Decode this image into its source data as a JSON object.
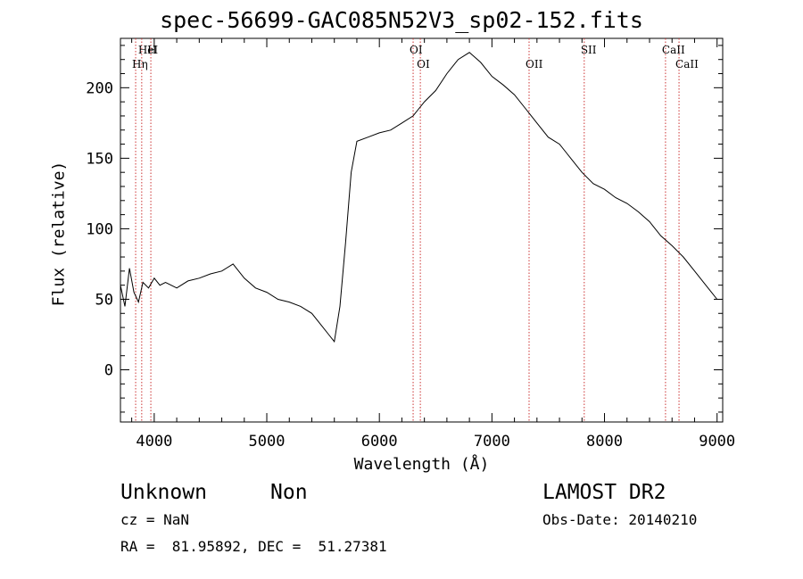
{
  "header": {
    "title": "spec-56699-GAC085N52V3_sp02-152.fits"
  },
  "footer": {
    "object_class": "Unknown",
    "object_subclass": "Non",
    "survey": "LAMOST DR2",
    "cz": "cz = NaN",
    "obs_date": "Obs-Date: 20140210",
    "radec": "RA =  81.95892, DEC =  51.27381"
  },
  "colors": {
    "line_marker": "#cc3333",
    "spectrum": "#000000"
  },
  "chart_data": {
    "type": "line",
    "title": "spec-56699-GAC085N52V3_sp02-152.fits",
    "xlabel": "Wavelength (Å)",
    "ylabel": "Flux (relative)",
    "xlim": [
      3700,
      9050
    ],
    "ylim": [
      -37,
      235
    ],
    "xticks": [
      4000,
      5000,
      6000,
      7000,
      8000,
      9000
    ],
    "yticks": [
      0,
      50,
      100,
      150,
      200
    ],
    "grid": false,
    "series": [
      {
        "x": [
          3700,
          3740,
          3780,
          3820,
          3860,
          3900,
          3950,
          4000,
          4050,
          4100,
          4200,
          4300,
          4400,
          4500,
          4600,
          4700,
          4800,
          4900,
          5000,
          5100,
          5200,
          5300,
          5400,
          5500,
          5550,
          5600,
          5650,
          5700,
          5750,
          5800,
          5900,
          6000,
          6100,
          6200,
          6300,
          6350,
          6400,
          6500,
          6600,
          6700,
          6800,
          6900,
          7000,
          7100,
          7200,
          7300,
          7400,
          7500,
          7600,
          7700,
          7800,
          7900,
          8000,
          8100,
          8200,
          8300,
          8400,
          8500,
          8600,
          8700,
          8800,
          8900,
          8950,
          9000
        ],
        "y": [
          60,
          45,
          72,
          55,
          48,
          62,
          58,
          65,
          60,
          62,
          58,
          63,
          65,
          68,
          70,
          75,
          65,
          58,
          55,
          50,
          48,
          45,
          40,
          30,
          25,
          20,
          45,
          90,
          140,
          162,
          165,
          168,
          170,
          175,
          180,
          185,
          190,
          198,
          210,
          220,
          225,
          218,
          208,
          202,
          195,
          185,
          175,
          165,
          160,
          150,
          140,
          132,
          128,
          122,
          118,
          112,
          105,
          95,
          88,
          80,
          70,
          60,
          55,
          50
        ]
      }
    ],
    "line_markers": [
      {
        "label": "HeI",
        "x": 3889
      },
      {
        "label": "Hη",
        "x": 3835
      },
      {
        "label": "H",
        "x": 3970
      },
      {
        "label": "OI",
        "x": 6364
      },
      {
        "label": "OI",
        "x": 6300
      },
      {
        "label": "OII",
        "x": 7330
      },
      {
        "label": "SII",
        "x": 7820
      },
      {
        "label": "CaII",
        "x": 8662
      },
      {
        "label": "CaII",
        "x": 8542
      }
    ]
  }
}
